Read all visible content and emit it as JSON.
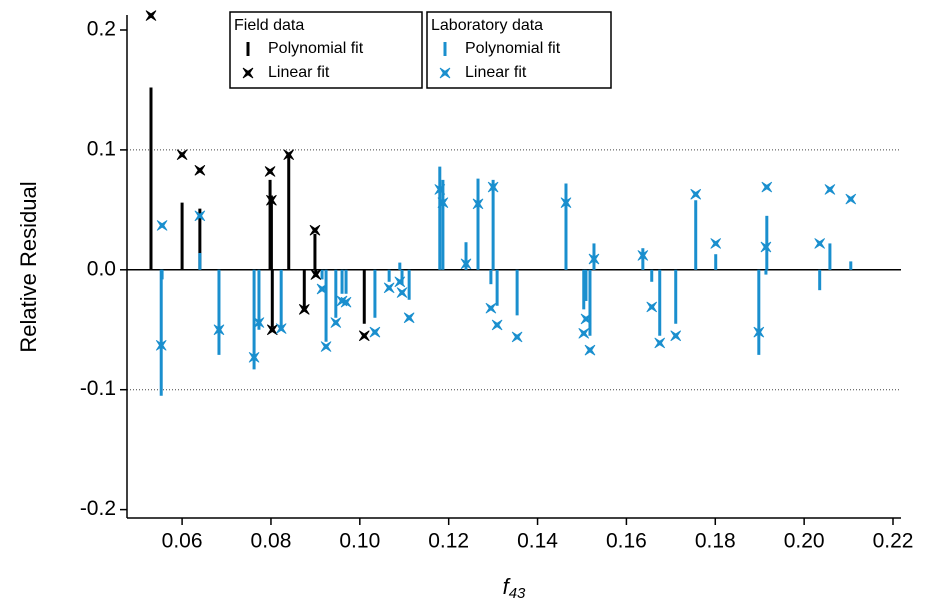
{
  "chart_data": {
    "type": "residual-sticks",
    "ylabel": "Relative Residual",
    "xlabel": {
      "text": "f",
      "subscript": "43"
    },
    "xlim": [
      0.0476,
      0.2218
    ],
    "ylim": [
      -0.207,
      0.2125
    ],
    "xticks": [
      0.06,
      0.08,
      {
        "value": 0.1,
        "label": "0.10"
      },
      0.12,
      0.14,
      0.16,
      0.18,
      {
        "value": 0.2,
        "label": "0.20"
      },
      0.22
    ],
    "yticks": [
      -0.2,
      -0.1,
      {
        "value": 0,
        "label": "0.0"
      },
      0.1,
      0.2
    ],
    "hlines": [
      {
        "value": 0.1,
        "style": "dotted"
      },
      {
        "value": -0.1,
        "style": "dotted"
      },
      {
        "value": 0,
        "style": "solid"
      }
    ],
    "groups": [
      {
        "name": "Field data",
        "x": [
          0.053,
          0.06,
          0.064,
          0.0798,
          0.0801,
          0.0803,
          0.084,
          0.0875,
          0.0899,
          0.0901,
          0.101
        ],
        "series": [
          {
            "name": "Polynomial fit",
            "mark": "stick",
            "color": "#000000",
            "values": [
              0.152,
              0.056,
              0.051,
              0.075,
              0.062,
              -0.048,
              0.096,
              -0.034,
              0.03,
              -0.003,
              -0.045
            ]
          },
          {
            "name": "Linear fit",
            "mark": "marker",
            "color": "#000000",
            "values": [
              0.212,
              0.096,
              0.083,
              0.082,
              0.058,
              -0.05,
              0.096,
              -0.033,
              0.033,
              -0.004,
              -0.055
            ]
          }
        ]
      },
      {
        "name": "Laboratory data",
        "x": [
          0.0553,
          0.0555,
          0.064,
          0.0683,
          0.0762,
          0.0773,
          0.0823,
          0.0915,
          0.0924,
          0.0946,
          0.096,
          0.0969,
          0.1034,
          0.1066,
          0.109,
          0.1095,
          0.1111,
          0.118,
          0.1187,
          0.1239,
          0.1266,
          0.1295,
          0.13,
          0.1309,
          0.1354,
          0.1464,
          0.1504,
          0.1509,
          0.1518,
          0.1527,
          0.1637,
          0.1657,
          0.1675,
          0.1711,
          0.1756,
          0.1801,
          0.1898,
          0.1914,
          0.1916,
          0.2035,
          0.2058,
          0.2105
        ],
        "series": [
          {
            "name": "Polynomial fit",
            "mark": "stick",
            "color": "#1a8fce",
            "values": [
              -0.105,
              -0.008,
              0.014,
              -0.071,
              -0.083,
              -0.05,
              -0.048,
              -0.008,
              -0.06,
              -0.04,
              -0.02,
              -0.02,
              -0.04,
              -0.01,
              0.006,
              -0.012,
              -0.025,
              0.086,
              0.075,
              0.023,
              0.076,
              -0.012,
              0.075,
              -0.03,
              -0.038,
              0.072,
              -0.033,
              -0.026,
              -0.055,
              0.022,
              0.018,
              -0.01,
              -0.055,
              -0.045,
              0.058,
              0.013,
              -0.071,
              -0.004,
              0.045,
              -0.017,
              0.022,
              0.007
            ]
          },
          {
            "name": "Linear fit",
            "mark": "marker",
            "color": "#1a8fce",
            "values": [
              -0.063,
              0.037,
              0.045,
              -0.05,
              -0.073,
              -0.044,
              -0.049,
              -0.016,
              -0.064,
              -0.044,
              -0.026,
              -0.027,
              -0.052,
              -0.015,
              -0.01,
              -0.019,
              -0.04,
              0.067,
              0.056,
              0.005,
              0.055,
              -0.032,
              0.069,
              -0.046,
              -0.056,
              0.056,
              -0.053,
              -0.041,
              -0.067,
              0.009,
              0.012,
              -0.031,
              -0.061,
              -0.055,
              0.063,
              0.022,
              -0.052,
              0.019,
              0.069,
              0.022,
              0.067,
              0.059
            ]
          }
        ]
      }
    ]
  }
}
